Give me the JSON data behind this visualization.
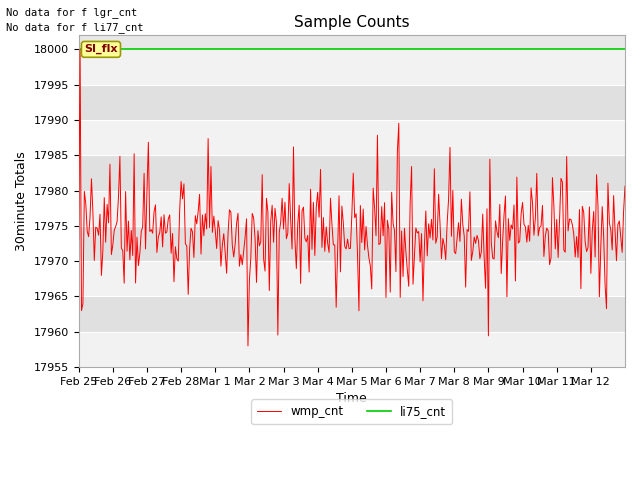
{
  "title": "Sample Counts",
  "xlabel": "Time",
  "ylabel": "30minute Totals",
  "ylim": [
    17955,
    18002
  ],
  "xlim": [
    0,
    384
  ],
  "yticks": [
    17955,
    17960,
    17965,
    17970,
    17975,
    17980,
    17985,
    17990,
    17995,
    18000
  ],
  "xtick_labels": [
    "Feb 25",
    "Feb 26",
    "Feb 27",
    "Feb 28",
    "Mar 1",
    "Mar 2",
    "Mar 3",
    "Mar 4",
    "Mar 5",
    "Mar 6",
    "Mar 7",
    "Mar 8",
    "Mar 9",
    "Mar 10",
    "Mar 11",
    "Mar 12"
  ],
  "xtick_positions": [
    0,
    24,
    48,
    72,
    96,
    120,
    144,
    168,
    192,
    216,
    240,
    264,
    288,
    312,
    336,
    360
  ],
  "annotation_text1": "No data for f lgr_cnt",
  "annotation_text2": "No data for f li77_cnt",
  "si_flx_label": "SI_flx",
  "line1_color": "#ff0000",
  "line2_color": "#00cc00",
  "line1_label": "wmp_cnt",
  "line2_label": "li75_cnt",
  "line2_value": 18000,
  "background_color": "#e8e8e8",
  "band_color_light": "#f2f2f2",
  "band_color_dark": "#e0e0e0",
  "grid_color": "#ffffff",
  "title_fontsize": 11,
  "axis_fontsize": 9,
  "tick_fontsize": 8
}
